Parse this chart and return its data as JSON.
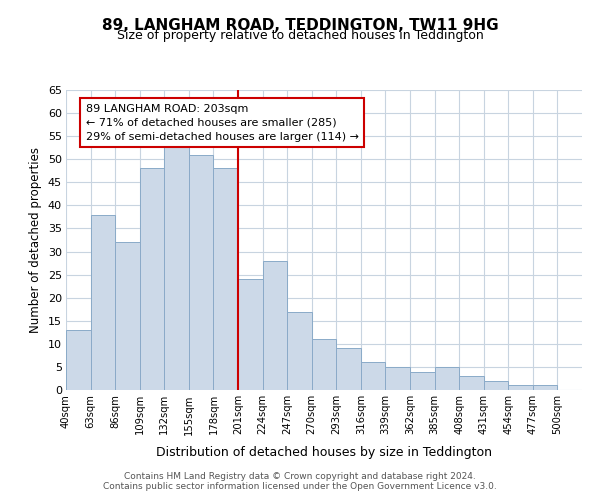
{
  "title": "89, LANGHAM ROAD, TEDDINGTON, TW11 9HG",
  "subtitle": "Size of property relative to detached houses in Teddington",
  "xlabel": "Distribution of detached houses by size in Teddington",
  "ylabel": "Number of detached properties",
  "categories": [
    "40sqm",
    "63sqm",
    "86sqm",
    "109sqm",
    "132sqm",
    "155sqm",
    "178sqm",
    "201sqm",
    "224sqm",
    "247sqm",
    "270sqm",
    "293sqm",
    "316sqm",
    "339sqm",
    "362sqm",
    "385sqm",
    "408sqm",
    "431sqm",
    "454sqm",
    "477sqm",
    "500sqm"
  ],
  "values": [
    13,
    38,
    32,
    48,
    54,
    51,
    48,
    24,
    28,
    17,
    11,
    9,
    6,
    5,
    4,
    5,
    3,
    2,
    1,
    1
  ],
  "bar_color": "#ccd9e8",
  "bar_edge_color": "#8aaac8",
  "marker_index": 7,
  "marker_line_color": "#cc0000",
  "annotation_text_line1": "89 LANGHAM ROAD: 203sqm",
  "annotation_text_line2": "← 71% of detached houses are smaller (285)",
  "annotation_text_line3": "29% of semi-detached houses are larger (114) →",
  "annotation_box_color": "#ffffff",
  "annotation_box_edge_color": "#cc0000",
  "ylim": [
    0,
    65
  ],
  "yticks": [
    0,
    5,
    10,
    15,
    20,
    25,
    30,
    35,
    40,
    45,
    50,
    55,
    60,
    65
  ],
  "footnote1": "Contains HM Land Registry data © Crown copyright and database right 2024.",
  "footnote2": "Contains public sector information licensed under the Open Government Licence v3.0.",
  "bg_color": "#ffffff",
  "grid_color": "#c8d4e0",
  "title_fontsize": 11,
  "subtitle_fontsize": 9
}
